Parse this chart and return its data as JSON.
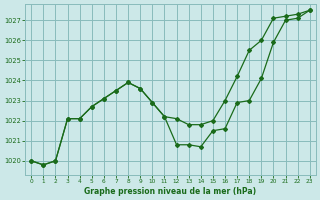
{
  "title": "Graphe pression niveau de la mer (hPa)",
  "bg_color": "#cce8e8",
  "grid_color": "#88bbbb",
  "line_color": "#1a6b1a",
  "xlim": [
    -0.5,
    23.5
  ],
  "ylim": [
    1019.3,
    1027.8
  ],
  "yticks": [
    1020,
    1021,
    1022,
    1023,
    1024,
    1025,
    1026,
    1027
  ],
  "xticks": [
    0,
    1,
    2,
    3,
    4,
    5,
    6,
    7,
    8,
    9,
    10,
    11,
    12,
    13,
    14,
    15,
    16,
    17,
    18,
    19,
    20,
    21,
    22,
    23
  ],
  "series1_x": [
    0,
    1,
    2,
    3,
    4,
    5,
    6,
    7,
    8,
    9,
    10,
    11,
    12,
    13,
    14,
    15,
    16,
    17,
    18,
    19,
    20,
    21,
    22,
    23
  ],
  "series1_y": [
    1020.0,
    1019.8,
    1020.0,
    1022.1,
    1022.1,
    1022.7,
    1023.1,
    1023.5,
    1023.9,
    1023.6,
    1022.9,
    1022.2,
    1022.1,
    1021.8,
    1021.8,
    1022.0,
    1023.0,
    1024.2,
    1025.5,
    1026.0,
    1027.1,
    1027.2,
    1027.3,
    1027.5
  ],
  "series2_x": [
    0,
    1,
    2,
    3,
    4,
    5,
    6,
    7,
    8,
    9,
    10,
    11,
    12,
    13,
    14,
    15,
    16,
    17,
    18,
    19,
    20,
    21,
    22,
    23
  ],
  "series2_y": [
    1020.0,
    1019.8,
    1020.0,
    1022.1,
    1022.1,
    1022.7,
    1023.1,
    1023.5,
    1023.9,
    1023.6,
    1022.9,
    1022.2,
    1020.8,
    1020.8,
    1020.7,
    1021.5,
    1021.6,
    1022.9,
    1023.0,
    1024.1,
    1025.9,
    1027.0,
    1027.1,
    1027.5
  ]
}
